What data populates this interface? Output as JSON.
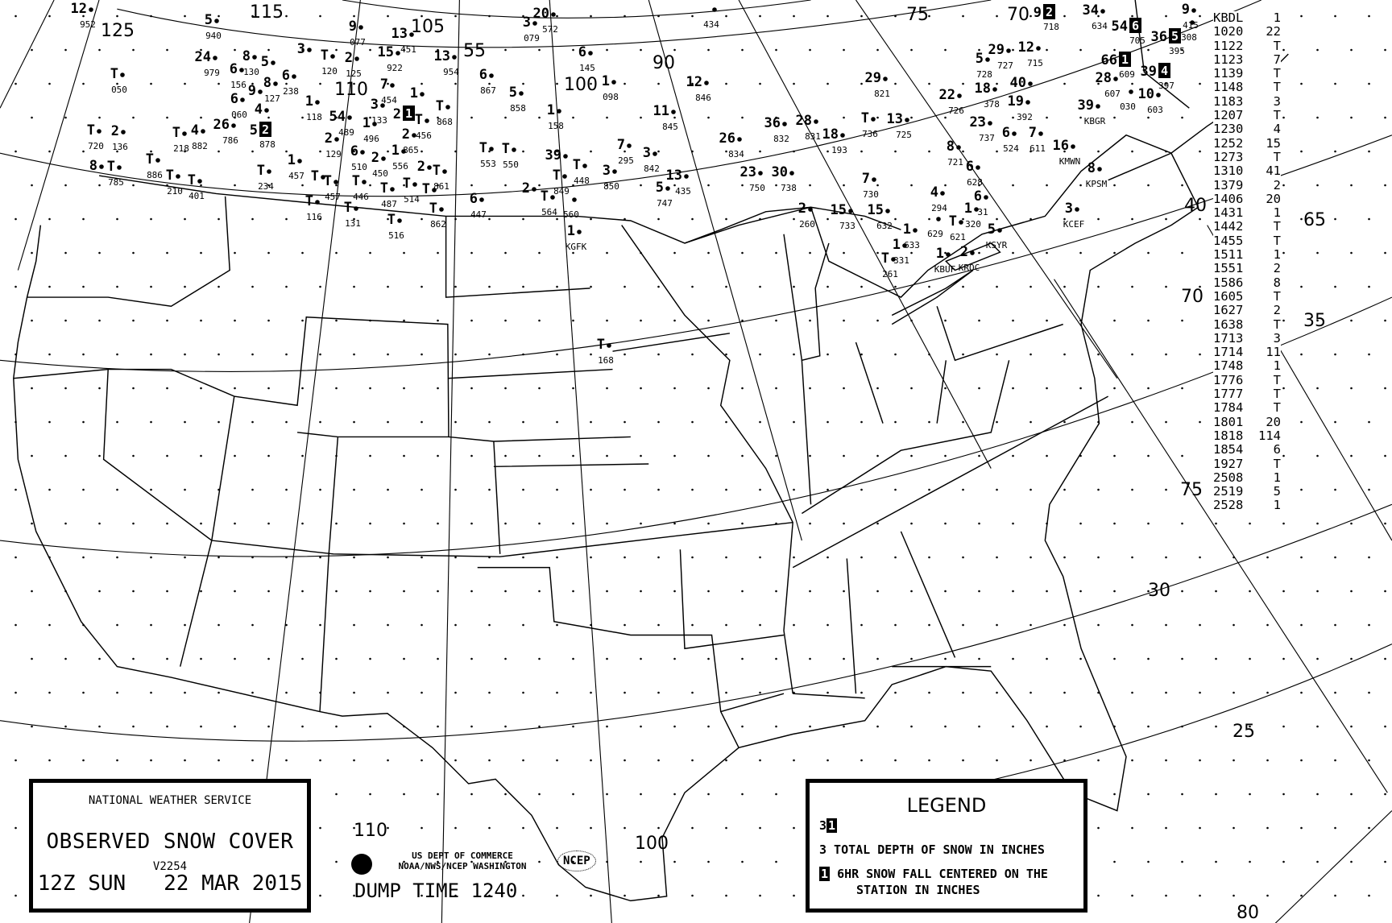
{
  "title_box": {
    "agency": "NATIONAL WEATHER SERVICE",
    "product": "OBSERVED SNOW COVER",
    "version": "V2254",
    "valid_time": "12Z SUN   22 MAR 2015"
  },
  "credits": {
    "line1": "US DEPT OF COMMERCE",
    "line2": "NOAA/NWS/NCEP WASHINGTON",
    "ncep_logo": "NCEP",
    "dump_time": "DUMP TIME 1240"
  },
  "legend": {
    "title": "LEGEND",
    "sample_depth": "3",
    "sample_6hr": "1",
    "depth_text": "3 TOTAL DEPTH OF SNOW IN INCHES",
    "sixhr_marker": "1",
    "sixhr_text_1": "6HR SNOW FALL CENTERED ON THE",
    "sixhr_text_2": "STATION IN INCHES"
  },
  "graticule_labels": [
    "125",
    "115",
    "105",
    "55",
    "110",
    "100",
    "90",
    "75",
    "70",
    "65",
    "40",
    "35",
    "70",
    "75",
    "30",
    "25",
    "80",
    "100",
    "110"
  ],
  "station_table": [
    {
      "id": "KBDL",
      "val": "1"
    },
    {
      "id": "1020",
      "val": "22"
    },
    {
      "id": "1122",
      "val": "T"
    },
    {
      "id": "1123",
      "val": "7"
    },
    {
      "id": "1139",
      "val": "T"
    },
    {
      "id": "1148",
      "val": "T"
    },
    {
      "id": "1183",
      "val": "3"
    },
    {
      "id": "1207",
      "val": "T"
    },
    {
      "id": "1230",
      "val": "4"
    },
    {
      "id": "1252",
      "val": "15"
    },
    {
      "id": "1273",
      "val": "T"
    },
    {
      "id": "1310",
      "val": "41"
    },
    {
      "id": "1379",
      "val": "2"
    },
    {
      "id": "1406",
      "val": "20"
    },
    {
      "id": "1431",
      "val": "1"
    },
    {
      "id": "1442",
      "val": "T"
    },
    {
      "id": "1455",
      "val": "T"
    },
    {
      "id": "1511",
      "val": "1"
    },
    {
      "id": "1551",
      "val": "2"
    },
    {
      "id": "1586",
      "val": "8"
    },
    {
      "id": "1605",
      "val": "T"
    },
    {
      "id": "1627",
      "val": "2"
    },
    {
      "id": "1638",
      "val": "T"
    },
    {
      "id": "1713",
      "val": "3"
    },
    {
      "id": "1714",
      "val": "11"
    },
    {
      "id": "1748",
      "val": "1"
    },
    {
      "id": "1776",
      "val": "T"
    },
    {
      "id": "1777",
      "val": "T"
    },
    {
      "id": "1784",
      "val": "T"
    },
    {
      "id": "1801",
      "val": "20"
    },
    {
      "id": "1818",
      "val": "114"
    },
    {
      "id": "1854",
      "val": "6"
    },
    {
      "id": "1927",
      "val": "T"
    },
    {
      "id": "2508",
      "val": "1"
    },
    {
      "id": "2519",
      "val": "5"
    },
    {
      "id": "2528",
      "val": "1"
    }
  ],
  "stations": [
    {
      "v": "12",
      "id": "952"
    },
    {
      "v": "5",
      "id": "940"
    },
    {
      "v": "24",
      "id": "979"
    },
    {
      "v": "8",
      "id": "130"
    },
    {
      "v": "5",
      "id": ""
    },
    {
      "v": "6",
      "id": "156"
    },
    {
      "v": "8",
      "id": "127"
    },
    {
      "v": "6",
      "id": "238"
    },
    {
      "v": "9",
      "id": ""
    },
    {
      "v": "6",
      "id": "060"
    },
    {
      "v": "4",
      "id": ""
    },
    {
      "v": "5",
      "id": "878",
      "six": "2"
    },
    {
      "v": "26",
      "id": "786"
    },
    {
      "v": "T",
      "id": "050"
    },
    {
      "v": "T",
      "id": "720"
    },
    {
      "v": "2",
      "id": "136"
    },
    {
      "v": "8",
      "id": ""
    },
    {
      "v": "T",
      "id": "785"
    },
    {
      "v": "T",
      "id": "218"
    },
    {
      "v": "4",
      "id": "882"
    },
    {
      "v": "T",
      "id": "886"
    },
    {
      "v": "T",
      "id": "210"
    },
    {
      "v": "T",
      "id": "401"
    },
    {
      "v": "3",
      "id": ""
    },
    {
      "v": "9",
      "id": "077"
    },
    {
      "v": "13",
      "id": "451"
    },
    {
      "v": "15",
      "id": "922"
    },
    {
      "v": "13",
      "id": "954"
    },
    {
      "v": "T",
      "id": "120"
    },
    {
      "v": "2",
      "id": "125"
    },
    {
      "v": "7",
      "id": "454"
    },
    {
      "v": "3",
      "id": "133"
    },
    {
      "v": "2",
      "id": "",
      "six": "1"
    },
    {
      "v": "1",
      "id": ""
    },
    {
      "v": "1",
      "id": "118"
    },
    {
      "v": "54",
      "id": "489"
    },
    {
      "v": "T",
      "id": "456"
    },
    {
      "v": "T",
      "id": "868"
    },
    {
      "v": "1",
      "id": "496"
    },
    {
      "v": "2",
      "id": "129"
    },
    {
      "v": "6",
      "id": "510"
    },
    {
      "v": "2",
      "id": "865"
    },
    {
      "v": "1",
      "id": "556"
    },
    {
      "v": "2",
      "id": "450"
    },
    {
      "v": "1",
      "id": "457"
    },
    {
      "v": "T",
      "id": "234"
    },
    {
      "v": "T",
      "id": ""
    },
    {
      "v": "T",
      "id": "457"
    },
    {
      "v": "T",
      "id": "446"
    },
    {
      "v": "T",
      "id": "131"
    },
    {
      "v": "T",
      "id": "116"
    },
    {
      "v": "T",
      "id": "514"
    },
    {
      "v": "2",
      "id": ""
    },
    {
      "v": "T",
      "id": "861"
    },
    {
      "v": "T",
      "id": "487"
    },
    {
      "v": "T",
      "id": ""
    },
    {
      "v": "T",
      "id": "516"
    },
    {
      "v": "T",
      "id": "862"
    },
    {
      "v": "6",
      "id": "447"
    },
    {
      "v": "3",
      "id": "079"
    },
    {
      "v": "20",
      "id": "572"
    },
    {
      "v": "6",
      "id": "867"
    },
    {
      "v": "5",
      "id": "858"
    },
    {
      "v": "6",
      "id": "145"
    },
    {
      "v": "1",
      "id": "098"
    },
    {
      "v": "1",
      "id": "158"
    },
    {
      "v": "T",
      "id": "553"
    },
    {
      "v": "T",
      "id": "550"
    },
    {
      "v": "39",
      "id": ""
    },
    {
      "v": "T",
      "id": "448"
    },
    {
      "v": "T",
      "id": "849"
    },
    {
      "v": "2",
      "id": ""
    },
    {
      "v": "T",
      "id": "564"
    },
    {
      "v": "",
      "id": "560"
    },
    {
      "v": "3",
      "id": "850"
    },
    {
      "v": "7",
      "id": "295"
    },
    {
      "v": "3",
      "id": "842"
    },
    {
      "v": "12",
      "id": "846"
    },
    {
      "v": "11",
      "id": "845"
    },
    {
      "v": "36",
      "id": "832"
    },
    {
      "v": "28",
      "id": "831"
    },
    {
      "v": "18",
      "id": "193"
    },
    {
      "v": "26",
      "id": "834"
    },
    {
      "v": "29",
      "id": "821"
    },
    {
      "v": "T",
      "id": "736"
    },
    {
      "v": "13",
      "id": "725"
    },
    {
      "v": "13",
      "id": "435"
    },
    {
      "v": "5",
      "id": "747"
    },
    {
      "v": "23",
      "id": "750"
    },
    {
      "v": "30",
      "id": "738"
    },
    {
      "v": "7",
      "id": "730"
    },
    {
      "v": "15",
      "id": "632"
    },
    {
      "v": "2",
      "id": "260"
    },
    {
      "v": "15",
      "id": "733"
    },
    {
      "v": "4",
      "id": "294"
    },
    {
      "v": "9",
      "id": "718",
      "six": "2"
    },
    {
      "v": "34",
      "id": "634"
    },
    {
      "v": "54",
      "id": "705",
      "six": "6"
    },
    {
      "v": "36",
      "id": "395",
      "six": "5"
    },
    {
      "v": "66",
      "id": "609",
      "six": "1"
    },
    {
      "v": "39",
      "id": "397",
      "six": "4"
    },
    {
      "v": "5",
      "id": "728"
    },
    {
      "v": "29",
      "id": "727"
    },
    {
      "v": "12",
      "id": "715"
    },
    {
      "v": "40",
      "id": ""
    },
    {
      "v": "18",
      "id": "378"
    },
    {
      "v": "19",
      "id": "392"
    },
    {
      "v": "28",
      "id": "607"
    },
    {
      "v": "",
      "id": "030"
    },
    {
      "v": "10",
      "id": "603"
    },
    {
      "v": "22",
      "id": "726"
    },
    {
      "v": "23",
      "id": "737"
    },
    {
      "v": "39",
      "id": "KBGR"
    },
    {
      "v": "7",
      "id": "611"
    },
    {
      "v": "6",
      "id": "524"
    },
    {
      "v": "16",
      "id": "KMWN"
    },
    {
      "v": "8",
      "id": "721"
    },
    {
      "v": "8",
      "id": "KPSM"
    },
    {
      "v": "6",
      "id": "628"
    },
    {
      "v": "6",
      "id": "31"
    },
    {
      "v": "3",
      "id": "KCEF"
    },
    {
      "v": "1",
      "id": "320"
    },
    {
      "v": "T",
      "id": "621"
    },
    {
      "v": "",
      "id": "629"
    },
    {
      "v": "5",
      "id": "KSYR"
    },
    {
      "v": "2",
      "id": "KROC"
    },
    {
      "v": "1",
      "id": "KBUF"
    },
    {
      "v": "1",
      "id": "331"
    },
    {
      "v": "1",
      "id": "633"
    },
    {
      "v": "T",
      "id": "261"
    },
    {
      "v": "1",
      "id": "KGFK"
    },
    {
      "v": "T",
      "id": "168"
    },
    {
      "v": "",
      "id": "434"
    },
    {
      "v": "9",
      "id": "415"
    },
    {
      "v": "",
      "id": "308"
    }
  ]
}
